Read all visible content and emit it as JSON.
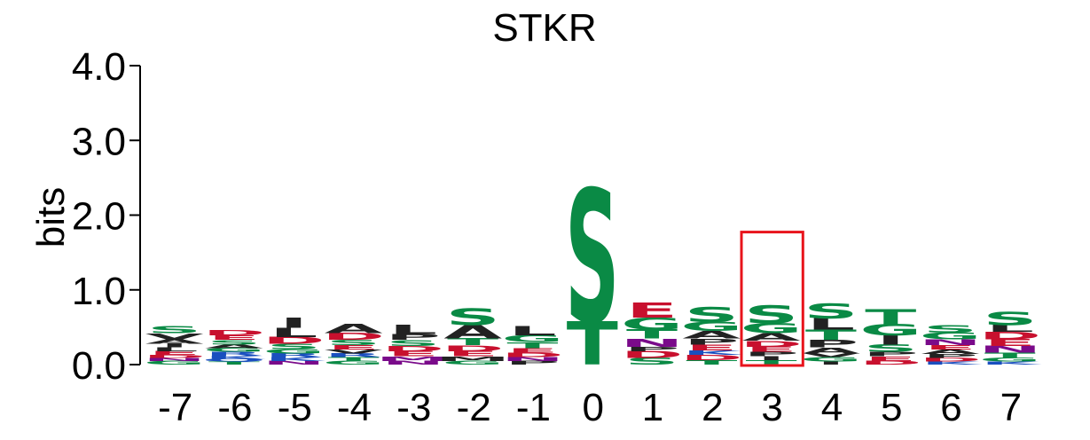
{
  "chart_data": {
    "type": "sequence-logo",
    "title": "STKR",
    "ylabel": "bits",
    "xlabel": "",
    "ylim": [
      0,
      4
    ],
    "yticks": [
      "0.0",
      "1.0",
      "2.0",
      "3.0",
      "4.0"
    ],
    "categories": [
      "-7",
      "-6",
      "-5",
      "-4",
      "-3",
      "-2",
      "-1",
      "0",
      "1",
      "2",
      "3",
      "4",
      "5",
      "6",
      "7"
    ],
    "colors": {
      "green": "#0a8a45",
      "black": "#222222",
      "red": "#c8102e",
      "purple": "#7a0a8a",
      "blue": "#1a4fbf",
      "highlight": "#e8141c"
    },
    "highlight_position": "3",
    "positions": [
      {
        "pos": "-7",
        "letters": [
          [
            "G",
            0.05,
            "green"
          ],
          [
            "N",
            0.04,
            "purple"
          ],
          [
            "D",
            0.04,
            "red"
          ],
          [
            "E",
            0.05,
            "red"
          ],
          [
            "L",
            0.05,
            "black"
          ],
          [
            "I",
            0.05,
            "black"
          ],
          [
            "A",
            0.06,
            "black"
          ],
          [
            "V",
            0.08,
            "black"
          ],
          [
            "S",
            0.09,
            "green"
          ]
        ]
      },
      {
        "pos": "-6",
        "letters": [
          [
            "T",
            0.04,
            "green"
          ],
          [
            "Q",
            0.04,
            "blue"
          ],
          [
            "K",
            0.04,
            "blue"
          ],
          [
            "R",
            0.05,
            "blue"
          ],
          [
            "G",
            0.05,
            "green"
          ],
          [
            "A",
            0.05,
            "black"
          ],
          [
            "S",
            0.06,
            "green"
          ],
          [
            "E",
            0.06,
            "red"
          ],
          [
            "D",
            0.07,
            "red"
          ]
        ]
      },
      {
        "pos": "-5",
        "letters": [
          [
            "N",
            0.05,
            "purple"
          ],
          [
            "K",
            0.05,
            "blue"
          ],
          [
            "R",
            0.05,
            "blue"
          ],
          [
            "G",
            0.06,
            "green"
          ],
          [
            "S",
            0.07,
            "green"
          ],
          [
            "D",
            0.09,
            "red"
          ],
          [
            "L",
            0.12,
            "black"
          ],
          [
            "I",
            0.14,
            "black"
          ]
        ]
      },
      {
        "pos": "-4",
        "letters": [
          [
            "G",
            0.05,
            "green"
          ],
          [
            "T",
            0.05,
            "green"
          ],
          [
            "R",
            0.05,
            "blue"
          ],
          [
            "V",
            0.05,
            "black"
          ],
          [
            "E",
            0.06,
            "red"
          ],
          [
            "S",
            0.07,
            "green"
          ],
          [
            "D",
            0.09,
            "red"
          ],
          [
            "A",
            0.12,
            "black"
          ]
        ]
      },
      {
        "pos": "-3",
        "letters": [
          [
            "N",
            0.05,
            "purple"
          ],
          [
            "M",
            0.06,
            "purple"
          ],
          [
            "E",
            0.07,
            "red"
          ],
          [
            "D",
            0.07,
            "red"
          ],
          [
            "S",
            0.08,
            "green"
          ],
          [
            "P",
            0.08,
            "black"
          ],
          [
            "L",
            0.12,
            "black"
          ]
        ]
      },
      {
        "pos": "-2",
        "letters": [
          [
            "G",
            0.05,
            "green"
          ],
          [
            "M",
            0.06,
            "black"
          ],
          [
            "E",
            0.07,
            "red"
          ],
          [
            "D",
            0.08,
            "red"
          ],
          [
            "T",
            0.09,
            "green"
          ],
          [
            "A",
            0.18,
            "black"
          ],
          [
            "S",
            0.22,
            "green"
          ]
        ]
      },
      {
        "pos": "-1",
        "letters": [
          [
            "P",
            0.05,
            "black"
          ],
          [
            "N",
            0.05,
            "purple"
          ],
          [
            "D",
            0.06,
            "red"
          ],
          [
            "E",
            0.06,
            "red"
          ],
          [
            "T",
            0.08,
            "green"
          ],
          [
            "G",
            0.09,
            "green"
          ],
          [
            "L",
            0.12,
            "black"
          ]
        ]
      },
      {
        "pos": "0",
        "letters": [
          [
            "T",
            0.58,
            "green"
          ],
          [
            "S",
            1.78,
            "green"
          ]
        ]
      },
      {
        "pos": "1",
        "letters": [
          [
            "S",
            0.09,
            "green"
          ],
          [
            "D",
            0.09,
            "red"
          ],
          [
            "P",
            0.06,
            "black"
          ],
          [
            "N",
            0.11,
            "purple"
          ],
          [
            "T",
            0.12,
            "green"
          ],
          [
            "G",
            0.16,
            "green"
          ],
          [
            "E",
            0.2,
            "red"
          ]
        ]
      },
      {
        "pos": "2",
        "letters": [
          [
            "T",
            0.06,
            "green"
          ],
          [
            "D",
            0.07,
            "red"
          ],
          [
            "K",
            0.06,
            "blue"
          ],
          [
            "E",
            0.08,
            "red"
          ],
          [
            "P",
            0.08,
            "black"
          ],
          [
            "A",
            0.1,
            "black"
          ],
          [
            "G",
            0.12,
            "green"
          ],
          [
            "S",
            0.2,
            "green"
          ]
        ]
      },
      {
        "pos": "3",
        "letters": [
          [
            "T",
            0.06,
            "green"
          ],
          [
            "I",
            0.05,
            "black"
          ],
          [
            "P",
            0.06,
            "black"
          ],
          [
            "E",
            0.07,
            "red"
          ],
          [
            "D",
            0.08,
            "red"
          ],
          [
            "A",
            0.1,
            "black"
          ],
          [
            "G",
            0.14,
            "green"
          ],
          [
            "S",
            0.24,
            "green"
          ]
        ]
      },
      {
        "pos": "4",
        "letters": [
          [
            "I",
            0.04,
            "black"
          ],
          [
            "G",
            0.06,
            "green"
          ],
          [
            "V",
            0.05,
            "black"
          ],
          [
            "A",
            0.08,
            "black"
          ],
          [
            "P",
            0.1,
            "black"
          ],
          [
            "T",
            0.14,
            "green"
          ],
          [
            "L",
            0.15,
            "black"
          ],
          [
            "S",
            0.2,
            "green"
          ]
        ]
      },
      {
        "pos": "5",
        "letters": [
          [
            "D",
            0.05,
            "red"
          ],
          [
            "E",
            0.06,
            "red"
          ],
          [
            "P",
            0.06,
            "black"
          ],
          [
            "S",
            0.1,
            "green"
          ],
          [
            "I",
            0.12,
            "black"
          ],
          [
            "G",
            0.15,
            "green"
          ],
          [
            "T",
            0.2,
            "green"
          ]
        ]
      },
      {
        "pos": "6",
        "letters": [
          [
            "K",
            0.04,
            "blue"
          ],
          [
            "D",
            0.05,
            "red"
          ],
          [
            "P",
            0.05,
            "black"
          ],
          [
            "A",
            0.06,
            "black"
          ],
          [
            "E",
            0.06,
            "red"
          ],
          [
            "N",
            0.08,
            "purple"
          ],
          [
            "G",
            0.09,
            "green"
          ],
          [
            "S",
            0.1,
            "green"
          ]
        ]
      },
      {
        "pos": "7",
        "letters": [
          [
            "K",
            0.04,
            "blue"
          ],
          [
            "G",
            0.05,
            "green"
          ],
          [
            "T",
            0.07,
            "green"
          ],
          [
            "N",
            0.09,
            "purple"
          ],
          [
            "E",
            0.09,
            "red"
          ],
          [
            "D",
            0.1,
            "red"
          ],
          [
            "L",
            0.09,
            "black"
          ],
          [
            "S",
            0.18,
            "green"
          ]
        ]
      }
    ]
  }
}
